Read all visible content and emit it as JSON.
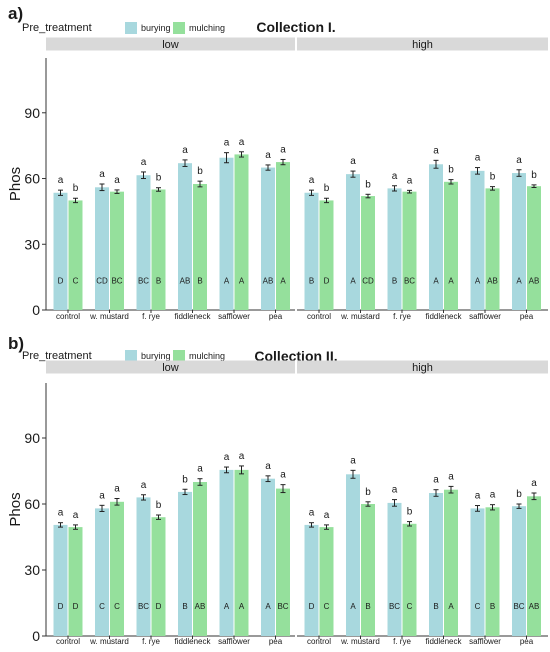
{
  "figure": {
    "legend_title": "Pre_treatment",
    "ylabel": "Phos",
    "ticks": [
      0,
      30,
      60,
      90
    ],
    "ylim": [
      0,
      115
    ],
    "colors": {
      "burying": "#a8d8de",
      "mulching": "#95e09c",
      "strip": "#d9d9d9"
    }
  },
  "chart_data": [
    {
      "panel_label": "a)",
      "type": "bar",
      "title": "Collection I.",
      "ylabel": "Phos",
      "ylim": [
        0,
        115
      ],
      "legend_placement": "top-left",
      "series_names": [
        "burying",
        "mulching"
      ],
      "categories": [
        "control",
        "w. mustard",
        "f. rye",
        "fiddleneck",
        "safflower",
        "pea"
      ],
      "facets": [
        {
          "label": "low",
          "burying": {
            "values": [
              53.5,
              56.0,
              61.5,
              67.0,
              69.5,
              65.0
            ],
            "errors": [
              1.2,
              1.5,
              1.5,
              1.5,
              2.3,
              1.2
            ],
            "top_letters": [
              "a",
              "a",
              "a",
              "a",
              "a",
              "a"
            ],
            "group_letters": [
              "D",
              "CD",
              "BC",
              "AB",
              "A",
              "AB"
            ]
          },
          "mulching": {
            "values": [
              50.0,
              54.0,
              55.0,
              57.5,
              71.0,
              67.5
            ],
            "errors": [
              1.0,
              0.8,
              0.8,
              1.3,
              1.2,
              1.2
            ],
            "top_letters": [
              "b",
              "a",
              "b",
              "b",
              "a",
              "a"
            ],
            "group_letters": [
              "C",
              "BC",
              "B",
              "B",
              "A",
              "A"
            ]
          }
        },
        {
          "label": "high",
          "burying": {
            "values": [
              53.5,
              62.0,
              55.5,
              66.5,
              63.5,
              62.5
            ],
            "errors": [
              1.2,
              1.4,
              1.2,
              1.8,
              1.5,
              1.5
            ],
            "top_letters": [
              "a",
              "a",
              "a",
              "a",
              "a",
              "a"
            ],
            "group_letters": [
              "B",
              "A",
              "B",
              "A",
              "A",
              "A"
            ]
          },
          "mulching": {
            "values": [
              50.0,
              52.0,
              54.0,
              58.5,
              55.5,
              56.5
            ],
            "errors": [
              1.0,
              0.8,
              0.6,
              1.0,
              0.8,
              0.6
            ],
            "top_letters": [
              "b",
              "b",
              "a",
              "b",
              "b",
              "b"
            ],
            "group_letters": [
              "D",
              "CD",
              "BC",
              "A",
              "AB",
              "AB"
            ]
          }
        }
      ]
    },
    {
      "panel_label": "b)",
      "type": "bar",
      "title": "Collection II.",
      "ylabel": "Phos",
      "ylim": [
        0,
        115
      ],
      "legend_placement": "top-left",
      "series_names": [
        "burying",
        "mulching"
      ],
      "categories": [
        "control",
        "w. mustard",
        "f. rye",
        "fiddleneck",
        "safflower",
        "pea"
      ],
      "facets": [
        {
          "label": "low",
          "burying": {
            "values": [
              50.5,
              58.0,
              63.0,
              65.5,
              75.5,
              71.5
            ],
            "errors": [
              1.0,
              1.4,
              1.2,
              1.2,
              1.3,
              1.3
            ],
            "top_letters": [
              "a",
              "a",
              "a",
              "b",
              "a",
              "a"
            ],
            "group_letters": [
              "D",
              "C",
              "BC",
              "B",
              "A",
              "A"
            ]
          },
          "mulching": {
            "values": [
              49.5,
              61.0,
              54.0,
              70.0,
              75.5,
              67.0
            ],
            "errors": [
              1.0,
              1.5,
              1.0,
              1.5,
              1.8,
              1.8
            ],
            "top_letters": [
              "a",
              "a",
              "b",
              "a",
              "a",
              "a"
            ],
            "group_letters": [
              "D",
              "C",
              "D",
              "AB",
              "A",
              "BC"
            ]
          }
        },
        {
          "label": "high",
          "burying": {
            "values": [
              50.5,
              73.5,
              60.5,
              65.0,
              58.0,
              59.0
            ],
            "errors": [
              1.0,
              1.8,
              1.5,
              1.5,
              1.3,
              1.0
            ],
            "top_letters": [
              "a",
              "a",
              "a",
              "a",
              "a",
              "b"
            ],
            "group_letters": [
              "D",
              "A",
              "BC",
              "B",
              "C",
              "BC"
            ]
          },
          "mulching": {
            "values": [
              49.5,
              60.0,
              51.0,
              66.5,
              58.5,
              63.5
            ],
            "errors": [
              1.0,
              1.0,
              1.0,
              1.5,
              1.2,
              1.5
            ],
            "top_letters": [
              "a",
              "b",
              "b",
              "a",
              "a",
              "a"
            ],
            "group_letters": [
              "C",
              "B",
              "C",
              "A",
              "B",
              "AB"
            ]
          }
        }
      ]
    }
  ]
}
